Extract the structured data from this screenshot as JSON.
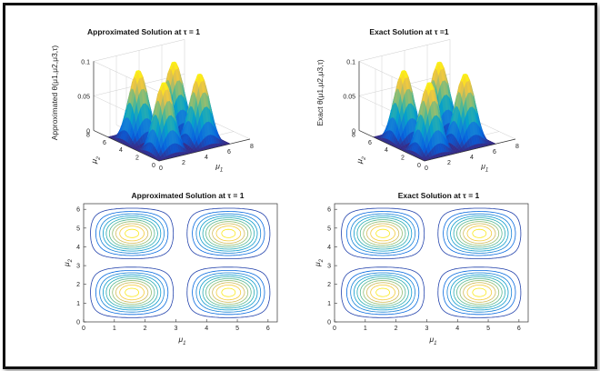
{
  "chart_data": [
    {
      "type": "surface",
      "title": "Approximated Solution at τ = 1",
      "xlabel": "μ1",
      "ylabel": "μ2",
      "zlabel": "Approximated θ(μ1,μ2,μ3,τ)",
      "xlim": [
        0,
        8
      ],
      "ylim": [
        0,
        8
      ],
      "zlim": [
        0,
        0.1
      ],
      "xticks": [
        "0",
        "2",
        "4",
        "6",
        "8"
      ],
      "yticks": [
        "0",
        "2",
        "4",
        "6",
        "8"
      ],
      "zticks": [
        "0",
        "0.05",
        "0.1"
      ],
      "peaks": [
        {
          "x": 1.57,
          "y": 1.57,
          "z": 0.1
        },
        {
          "x": 4.71,
          "y": 1.57,
          "z": 0.1
        },
        {
          "x": 1.57,
          "y": 4.71,
          "z": 0.1
        },
        {
          "x": 4.71,
          "y": 4.71,
          "z": 0.1
        }
      ],
      "grid": true
    },
    {
      "type": "surface",
      "title": "Exact Solution at τ =1",
      "xlabel": "μ1",
      "ylabel": "μ2",
      "zlabel": "Exact θ(μ1,μ2,μ3,τ)",
      "xlim": [
        0,
        8
      ],
      "ylim": [
        0,
        8
      ],
      "zlim": [
        0,
        0.1
      ],
      "xticks": [
        "0",
        "2",
        "4",
        "6",
        "8"
      ],
      "yticks": [
        "0",
        "2",
        "4",
        "6",
        "8"
      ],
      "zticks": [
        "0",
        "0.05",
        "0.1"
      ],
      "peaks": [
        {
          "x": 1.57,
          "y": 1.57,
          "z": 0.1
        },
        {
          "x": 4.71,
          "y": 1.57,
          "z": 0.1
        },
        {
          "x": 1.57,
          "y": 4.71,
          "z": 0.1
        },
        {
          "x": 4.71,
          "y": 4.71,
          "z": 0.1
        }
      ],
      "grid": true
    },
    {
      "type": "contour",
      "title": "Approximated Solution at τ = 1",
      "xlabel": "μ1",
      "ylabel": "μ2",
      "xlim": [
        0,
        6.3
      ],
      "ylim": [
        0,
        6.3
      ],
      "xticks": [
        "0",
        "1",
        "2",
        "3",
        "4",
        "5",
        "6"
      ],
      "yticks": [
        "0",
        "1",
        "2",
        "3",
        "4",
        "5",
        "6"
      ],
      "levels": [
        0.005,
        0.015,
        0.025,
        0.035,
        0.045,
        0.055,
        0.065,
        0.075,
        0.085,
        0.095
      ]
    },
    {
      "type": "contour",
      "title": "Exact Solution at τ = 1",
      "xlabel": "μ1",
      "ylabel": "μ2",
      "xlim": [
        0,
        6.3
      ],
      "ylim": [
        0,
        6.3
      ],
      "xticks": [
        "0",
        "1",
        "2",
        "3",
        "4",
        "5",
        "6"
      ],
      "yticks": [
        "0",
        "1",
        "2",
        "3",
        "4",
        "5",
        "6"
      ],
      "levels": [
        0.005,
        0.015,
        0.025,
        0.035,
        0.045,
        0.055,
        0.065,
        0.075,
        0.085,
        0.095
      ]
    }
  ]
}
